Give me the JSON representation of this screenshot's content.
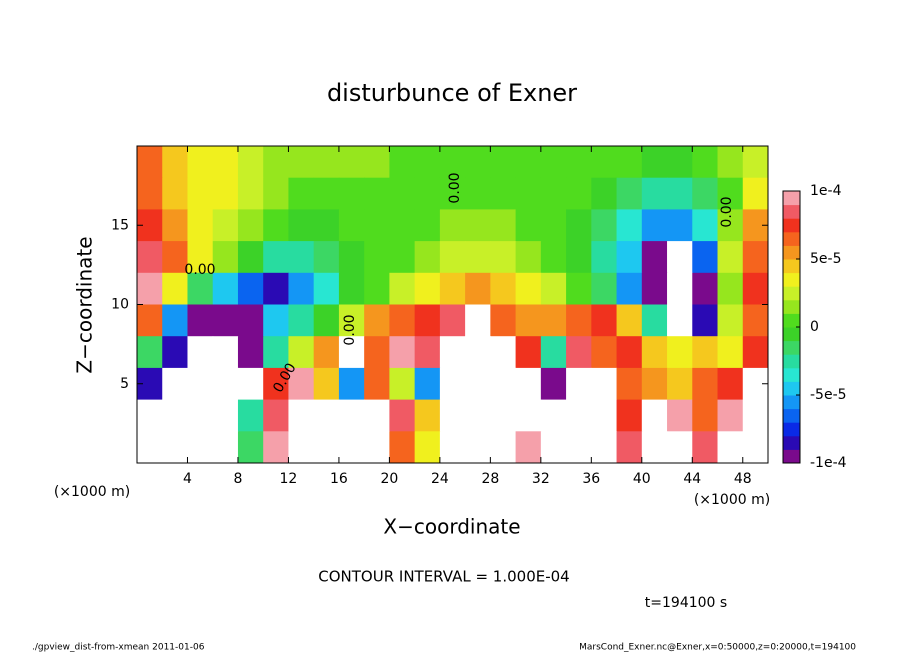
{
  "chart_data": {
    "type": "heatmap",
    "title": "disturbunce of Exner",
    "xlabel": "X−coordinate",
    "ylabel": "Z−coordinate",
    "x_unit": "(×1000 m)",
    "y_unit": "(×1000 m)",
    "xlim": [
      0,
      50
    ],
    "xticks": [
      4,
      8,
      12,
      16,
      20,
      24,
      28,
      32,
      36,
      40,
      44,
      48
    ],
    "ylim": [
      0,
      20
    ],
    "yticks": [
      5,
      10,
      15
    ],
    "x": [
      1,
      3,
      5,
      7,
      9,
      11,
      13,
      15,
      17,
      19,
      21,
      23,
      25,
      27,
      29,
      31,
      33,
      35,
      37,
      39,
      41,
      43,
      45,
      47,
      49
    ],
    "y": [
      19,
      17,
      15,
      13,
      11,
      9,
      7,
      5,
      3,
      1
    ],
    "values": [
      [
        6e-05,
        4e-05,
        3e-05,
        3e-05,
        2e-05,
        1e-05,
        1e-05,
        1e-05,
        1e-05,
        1e-05,
        0,
        0,
        0,
        0,
        0,
        0,
        0,
        0,
        0,
        0,
        -1e-05,
        -1e-05,
        0,
        1e-05,
        2e-05
      ],
      [
        6e-05,
        4e-05,
        3e-05,
        3e-05,
        2e-05,
        1e-05,
        0,
        0,
        0,
        0,
        0,
        0,
        0,
        0,
        0,
        0,
        0,
        0,
        -1e-05,
        -2e-05,
        -3e-05,
        -3e-05,
        -2e-05,
        0,
        3e-05
      ],
      [
        7e-05,
        5e-05,
        3e-05,
        2e-05,
        1e-05,
        0,
        -1e-05,
        -1e-05,
        0,
        0,
        0,
        0,
        1e-05,
        1e-05,
        1e-05,
        0,
        0,
        -1e-05,
        -2e-05,
        -4e-05,
        -6e-05,
        -6e-05,
        -4e-05,
        1e-05,
        5e-05
      ],
      [
        8e-05,
        6e-05,
        3e-05,
        1e-05,
        -1e-05,
        -3e-05,
        -3e-05,
        -2e-05,
        -1e-05,
        0,
        0,
        1e-05,
        2e-05,
        2e-05,
        2e-05,
        1e-05,
        0,
        -1e-05,
        -3e-05,
        -5e-05,
        -9e-05,
        -0.00012,
        -7e-05,
        2e-05,
        6e-05
      ],
      [
        9e-05,
        3e-05,
        -2e-05,
        -5e-05,
        -7e-05,
        -8e-05,
        -6e-05,
        -4e-05,
        -1e-05,
        0,
        2e-05,
        3e-05,
        4e-05,
        5e-05,
        4e-05,
        3e-05,
        2e-05,
        0,
        -2e-05,
        -6e-05,
        -9e-05,
        -0.00015,
        -9e-05,
        1e-05,
        7e-05
      ],
      [
        6e-05,
        -6e-05,
        -9e-05,
        -9e-05,
        -0.0001,
        -5e-05,
        -3e-05,
        -1e-05,
        2e-05,
        5e-05,
        6e-05,
        7e-05,
        8e-05,
        0.00012,
        6e-05,
        5e-05,
        5e-05,
        6e-05,
        7e-05,
        4e-05,
        -3e-05,
        -0.00015,
        -8e-05,
        2e-05,
        6e-05
      ],
      [
        -2e-05,
        -8e-05,
        -0.00015,
        -0.00012,
        -0.0001,
        -3e-05,
        2e-05,
        5e-05,
        0.00012,
        6e-05,
        9e-05,
        8e-05,
        0.00015,
        0.00014,
        0.00011,
        7e-05,
        -3e-05,
        8e-05,
        6e-05,
        7e-05,
        4e-05,
        3e-05,
        4e-05,
        3e-05,
        7e-05
      ],
      [
        -8e-05,
        -0.00015,
        -0.00014,
        -0.00012,
        -0.00011,
        7e-05,
        9e-05,
        4e-05,
        -6e-05,
        6e-05,
        2e-05,
        -6e-05,
        0.00015,
        0.00015,
        0.00014,
        0.00012,
        -0.0001,
        -0.00012,
        -0.00012,
        6e-05,
        5e-05,
        4e-05,
        6e-05,
        7e-05,
        0.00012
      ],
      [
        -0.00015,
        -0.00016,
        -0.00015,
        -0.00014,
        -3e-05,
        8e-05,
        0.00015,
        0.00012,
        0.00015,
        0.00012,
        8e-05,
        4e-05,
        0.00015,
        0.00015,
        0.00014,
        0.00011,
        -0.00015,
        -0.00016,
        -0.00014,
        7e-05,
        0.00012,
        0.0001,
        6e-05,
        0.0001,
        0.00014
      ],
      [
        -0.00015,
        -0.00016,
        -0.00015,
        -0.00014,
        -2e-05,
        9e-05,
        0.00014,
        -0.00012,
        0.00014,
        0.00012,
        6e-05,
        3e-05,
        0.00013,
        0.00015,
        0.00015,
        0.0001,
        -0.00015,
        -0.00018,
        -0.00014,
        8e-05,
        0.00012,
        0.00012,
        8e-05,
        0.00012,
        0.00015
      ]
    ],
    "clim": [
      -0.0001,
      0.0001
    ],
    "cticks": [
      {
        "value": 0.0001,
        "label": "1e-4"
      },
      {
        "value": 5e-05,
        "label": "5e-5"
      },
      0,
      {
        "value": -5e-05,
        "label": "-5e-5"
      },
      {
        "value": -0.0001,
        "label": "-1e-4"
      }
    ],
    "colors": [
      "#7a0a8c",
      "#2a0ab4",
      "#0a2ae6",
      "#0a64f0",
      "#1496f5",
      "#1ec8f0",
      "#28e6d2",
      "#28dca0",
      "#3cd764",
      "#3cd228",
      "#50dc1e",
      "#96e61e",
      "#c8f028",
      "#f0f01e",
      "#f5c81e",
      "#f5961e",
      "#f5641e",
      "#f0321e",
      "#f05a64",
      "#f5a0aa"
    ],
    "out_of_range_color": "#ffffff",
    "contour_label": "0.00",
    "contour_interval": "CONTOUR INTERVAL = 1.000E-04",
    "time_label": "t=194100 s",
    "footer_left": "./gpview_dist-from-xmean  2011-01-06",
    "footer_right": "MarsCond_Exner.nc@Exner,x=0:50000,z=0:20000,t=194100"
  }
}
